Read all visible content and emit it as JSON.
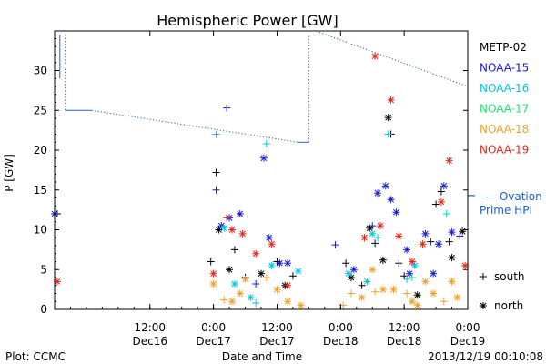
{
  "chart_data": {
    "type": "scatter",
    "title": "Hemispheric Power [GW]",
    "ylabel": "P [GW]",
    "xlabel": "Date and Time",
    "ylim": [
      0,
      35
    ],
    "xlim": [
      "2013-12-15 18:00",
      "2013-12-19 00:00"
    ],
    "yticks": [
      "0",
      "5",
      "10",
      "15",
      "20",
      "25",
      "30"
    ],
    "xticks": [
      {
        "time": "2013-12-16 12:00",
        "label_top": "12:00",
        "label_bottom": "Dec16"
      },
      {
        "time": "2013-12-17 00:00",
        "label_top": "0:00",
        "label_bottom": "Dec17"
      },
      {
        "time": "2013-12-17 12:00",
        "label_top": "12:00",
        "label_bottom": "Dec17"
      },
      {
        "time": "2013-12-18 00:00",
        "label_top": "0:00",
        "label_bottom": "Dec18"
      },
      {
        "time": "2013-12-18 12:00",
        "label_top": "12:00",
        "label_bottom": "Dec18"
      },
      {
        "time": "2013-12-19 00:00",
        "label_top": "0:00",
        "label_bottom": "Dec19"
      }
    ],
    "series": [
      {
        "name": "METP-02",
        "color": "#000000",
        "points": [
          [
            "2013-12-15 18:30",
            12,
            "+"
          ],
          [
            "2013-12-16 23:30",
            6,
            "+"
          ],
          [
            "2013-12-17 00:30",
            17.2,
            "+"
          ],
          [
            "2013-12-17 01:00",
            10,
            "*"
          ],
          [
            "2013-12-17 03:00",
            5,
            "*"
          ],
          [
            "2013-12-17 04:00",
            7.5,
            "+"
          ],
          [
            "2013-12-17 06:00",
            4,
            "+"
          ],
          [
            "2013-12-17 09:00",
            4.5,
            "*"
          ],
          [
            "2013-12-17 12:00",
            6,
            "+"
          ],
          [
            "2013-12-17 13:30",
            3,
            "*"
          ],
          [
            "2013-12-17 15:00",
            4.2,
            "+"
          ],
          [
            "2013-12-18 01:00",
            5.8,
            "+"
          ],
          [
            "2013-12-18 02:00",
            4,
            "*"
          ],
          [
            "2013-12-18 04:00",
            3,
            "+"
          ],
          [
            "2013-12-18 05:30",
            10.2,
            "*"
          ],
          [
            "2013-12-18 06:30",
            8.3,
            "+"
          ],
          [
            "2013-12-18 08:00",
            6.2,
            "*"
          ],
          [
            "2013-12-18 09:00",
            24.1,
            "*"
          ],
          [
            "2013-12-18 09:30",
            22,
            "+"
          ],
          [
            "2013-12-18 11:00",
            5.8,
            "+"
          ],
          [
            "2013-12-18 12:00",
            4.2,
            "+"
          ],
          [
            "2013-12-18 14:30",
            1.8,
            "*"
          ],
          [
            "2013-12-18 17:00",
            8.5,
            "+"
          ],
          [
            "2013-12-18 18:00",
            13.2,
            "+"
          ],
          [
            "2013-12-18 19:00",
            14.8,
            "+"
          ],
          [
            "2013-12-18 20:30",
            8.5,
            "+"
          ],
          [
            "2013-12-18 21:00",
            6.5,
            "*"
          ],
          [
            "2013-12-18 23:00",
            9.8,
            "*"
          ]
        ]
      },
      {
        "name": "NOAA-15",
        "color": "#1a1ad8",
        "points": [
          [
            "2013-12-15 18:00",
            12,
            "*"
          ],
          [
            "2013-12-17 00:30",
            15,
            "+"
          ],
          [
            "2013-12-17 01:30",
            10.5,
            "*"
          ],
          [
            "2013-12-17 02:30",
            25.3,
            "+"
          ],
          [
            "2013-12-17 03:00",
            11.5,
            "*"
          ],
          [
            "2013-12-17 05:00",
            12,
            "*"
          ],
          [
            "2013-12-17 08:00",
            3.2,
            "+"
          ],
          [
            "2013-12-17 09:30",
            19,
            "*"
          ],
          [
            "2013-12-17 10:30",
            9,
            "*"
          ],
          [
            "2013-12-17 12:30",
            5.8,
            "*"
          ],
          [
            "2013-12-17 14:00",
            5.8,
            "*"
          ],
          [
            "2013-12-17 23:00",
            8.1,
            "+"
          ],
          [
            "2013-12-18 02:30",
            5,
            "*"
          ],
          [
            "2013-12-18 06:00",
            10.5,
            "+"
          ],
          [
            "2013-12-18 07:00",
            14.6,
            "*"
          ],
          [
            "2013-12-18 08:30",
            15.5,
            "*"
          ],
          [
            "2013-12-18 09:30",
            13.8,
            "*"
          ],
          [
            "2013-12-18 10:30",
            12.2,
            "*"
          ],
          [
            "2013-12-18 12:30",
            7.5,
            "*"
          ],
          [
            "2013-12-18 13:00",
            4.5,
            "*"
          ],
          [
            "2013-12-18 16:00",
            9.5,
            "*"
          ],
          [
            "2013-12-18 17:30",
            4.5,
            "*"
          ],
          [
            "2013-12-18 18:30",
            8.2,
            "*"
          ],
          [
            "2013-12-18 19:30",
            15.5,
            "*"
          ],
          [
            "2013-12-18 21:00",
            9.7,
            "*"
          ],
          [
            "2013-12-18 22:30",
            9.2,
            "+"
          ]
        ]
      },
      {
        "name": "NOAA-16",
        "color": "#00c8e0",
        "points": [
          [
            "2013-12-17 00:30",
            22,
            "+"
          ],
          [
            "2013-12-17 02:00",
            10.2,
            "*"
          ],
          [
            "2013-12-17 04:00",
            3.2,
            "*"
          ],
          [
            "2013-12-17 07:00",
            1.5,
            "*"
          ],
          [
            "2013-12-17 08:00",
            0.8,
            "+"
          ],
          [
            "2013-12-17 10:00",
            20.8,
            "+"
          ],
          [
            "2013-12-17 11:00",
            5.5,
            "*"
          ],
          [
            "2013-12-17 16:00",
            4.8,
            "*"
          ],
          [
            "2013-12-18 01:30",
            4.5,
            "*"
          ],
          [
            "2013-12-18 05:00",
            3.5,
            "*"
          ],
          [
            "2013-12-18 06:00",
            9.5,
            "*"
          ],
          [
            "2013-12-18 07:00",
            9,
            "+"
          ],
          [
            "2013-12-18 09:00",
            22,
            "+"
          ],
          [
            "2013-12-18 12:30",
            3.8,
            "+"
          ],
          [
            "2013-12-18 14:00",
            5.5,
            "*"
          ],
          [
            "2013-12-18 20:00",
            12,
            "+"
          ]
        ]
      },
      {
        "name": "NOAA-17",
        "color": "#22e070",
        "points": [
          [
            "2013-12-18 13:30",
            4,
            "+"
          ]
        ]
      },
      {
        "name": "NOAA-18",
        "color": "#f0a028",
        "points": [
          [
            "2013-12-17 00:00",
            3.2,
            "*"
          ],
          [
            "2013-12-17 02:00",
            1.2,
            "+"
          ],
          [
            "2013-12-17 03:30",
            1,
            "*"
          ],
          [
            "2013-12-17 05:00",
            2,
            "*"
          ],
          [
            "2013-12-17 06:00",
            3.8,
            "*"
          ],
          [
            "2013-12-17 10:00",
            4,
            "+"
          ],
          [
            "2013-12-17 12:00",
            2.5,
            "*"
          ],
          [
            "2013-12-17 14:00",
            1,
            "*"
          ],
          [
            "2013-12-17 16:30",
            0.5,
            "*"
          ],
          [
            "2013-12-18 00:30",
            0.5,
            "+"
          ],
          [
            "2013-12-18 02:00",
            2,
            "+"
          ],
          [
            "2013-12-18 04:00",
            1.5,
            "*"
          ],
          [
            "2013-12-18 06:00",
            5,
            "*"
          ],
          [
            "2013-12-18 06:30",
            2.2,
            "+"
          ],
          [
            "2013-12-18 08:00",
            2.5,
            "*"
          ],
          [
            "2013-12-18 10:00",
            2.5,
            "*"
          ],
          [
            "2013-12-18 12:30",
            2,
            "+"
          ],
          [
            "2013-12-18 13:30",
            1,
            "*"
          ],
          [
            "2013-12-18 14:30",
            0.5,
            "*"
          ],
          [
            "2013-12-18 16:00",
            3.5,
            "*"
          ],
          [
            "2013-12-18 17:30",
            2,
            "*"
          ],
          [
            "2013-12-18 19:30",
            1,
            "+"
          ],
          [
            "2013-12-18 21:00",
            3.5,
            "*"
          ],
          [
            "2013-12-18 22:00",
            1.5,
            "*"
          ]
        ]
      },
      {
        "name": "NOAA-19",
        "color": "#e02818",
        "points": [
          [
            "2013-12-15 18:30",
            3.5,
            "*"
          ],
          [
            "2013-12-17 00:00",
            4.5,
            "*"
          ],
          [
            "2013-12-17 02:30",
            11.5,
            "+"
          ],
          [
            "2013-12-17 03:30",
            10,
            "*"
          ],
          [
            "2013-12-17 05:30",
            9.5,
            "*"
          ],
          [
            "2013-12-17 08:00",
            7,
            "*"
          ],
          [
            "2013-12-17 11:00",
            8.2,
            "*"
          ],
          [
            "2013-12-17 14:00",
            3,
            "*"
          ],
          [
            "2013-12-18 04:30",
            9,
            "*"
          ],
          [
            "2013-12-18 06:30",
            31.8,
            "*"
          ],
          [
            "2013-12-18 07:30",
            10.5,
            "*"
          ],
          [
            "2013-12-18 09:30",
            26.3,
            "*"
          ],
          [
            "2013-12-18 11:00",
            9.2,
            "*"
          ],
          [
            "2013-12-18 13:30",
            6,
            "*"
          ],
          [
            "2013-12-18 15:30",
            8.2,
            "*"
          ],
          [
            "2013-12-18 19:00",
            13.5,
            "*"
          ],
          [
            "2013-12-18 20:30",
            18.7,
            "*"
          ],
          [
            "2013-12-18 23:30",
            5.5,
            "*"
          ]
        ]
      }
    ],
    "ovation": {
      "name_line1": "— Ovation",
      "name_line2": "Prime HPI",
      "color": "#2060c8",
      "level_at_axis": 14.3,
      "segments": [
        {
          "type": "solid",
          "points": [
            [
              "2013-12-15 19:00",
              34.5
            ],
            [
              "2013-12-15 19:00",
              29
            ]
          ]
        },
        {
          "type": "dotted",
          "points": [
            [
              "2013-12-15 20:00",
              34.5
            ],
            [
              "2013-12-15 20:00",
              25
            ]
          ]
        },
        {
          "type": "solid",
          "points": [
            [
              "2013-12-15 20:00",
              25
            ],
            [
              "2013-12-16 01:00",
              25
            ]
          ]
        },
        {
          "type": "dotted",
          "points": [
            [
              "2013-12-16 01:00",
              25
            ],
            [
              "2013-12-17 16:00",
              21
            ]
          ]
        },
        {
          "type": "solid",
          "points": [
            [
              "2013-12-17 16:00",
              21
            ],
            [
              "2013-12-17 18:00",
              21
            ]
          ]
        },
        {
          "type": "dotted",
          "points": [
            [
              "2013-12-17 18:00",
              21
            ],
            [
              "2013-12-17 18:00",
              34.5
            ]
          ]
        },
        {
          "type": "dotted",
          "points": [
            [
              "2013-12-17 20:00",
              34.8
            ],
            [
              "2013-12-19 00:00",
              28
            ]
          ]
        }
      ]
    },
    "marker_key": [
      {
        "symbol": "+",
        "label": "south"
      },
      {
        "symbol": "*",
        "label": "north"
      }
    ],
    "legend_position": "right"
  },
  "footer": {
    "plot_label": "Plot: CCMC",
    "timestamp": "2013/12/19 00:10:08"
  }
}
